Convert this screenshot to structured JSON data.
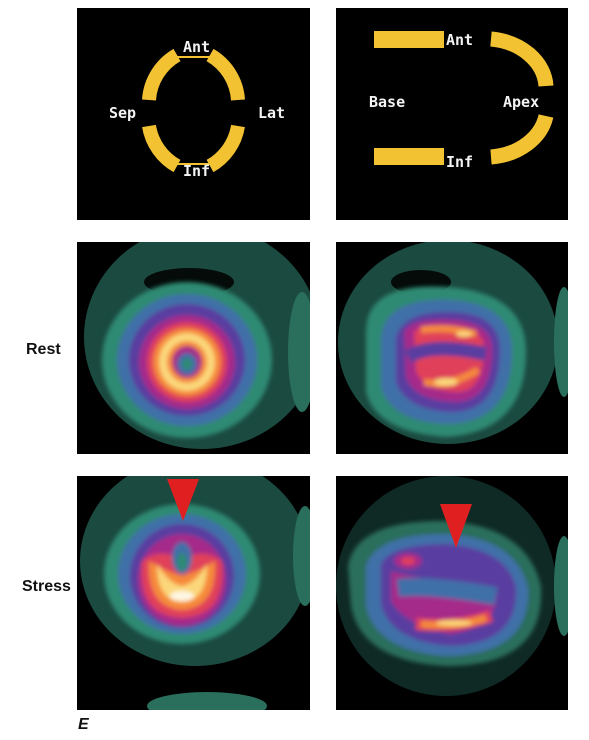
{
  "diagram_short_axis": {
    "top_label": "Ant",
    "left_label": "Sep",
    "right_label": "Lat",
    "bottom_label": "Inf"
  },
  "diagram_long_axis": {
    "top_label": "Ant",
    "left_label": "Base",
    "right_label": "Apex",
    "bottom_label": "Inf"
  },
  "row_labels": {
    "rest": "Rest",
    "stress": "Stress"
  },
  "figure_label": "E",
  "colors": {
    "diagram_yellow": "#f2c233",
    "panel_bg": "#000000",
    "arrow_red": "#e02020"
  }
}
